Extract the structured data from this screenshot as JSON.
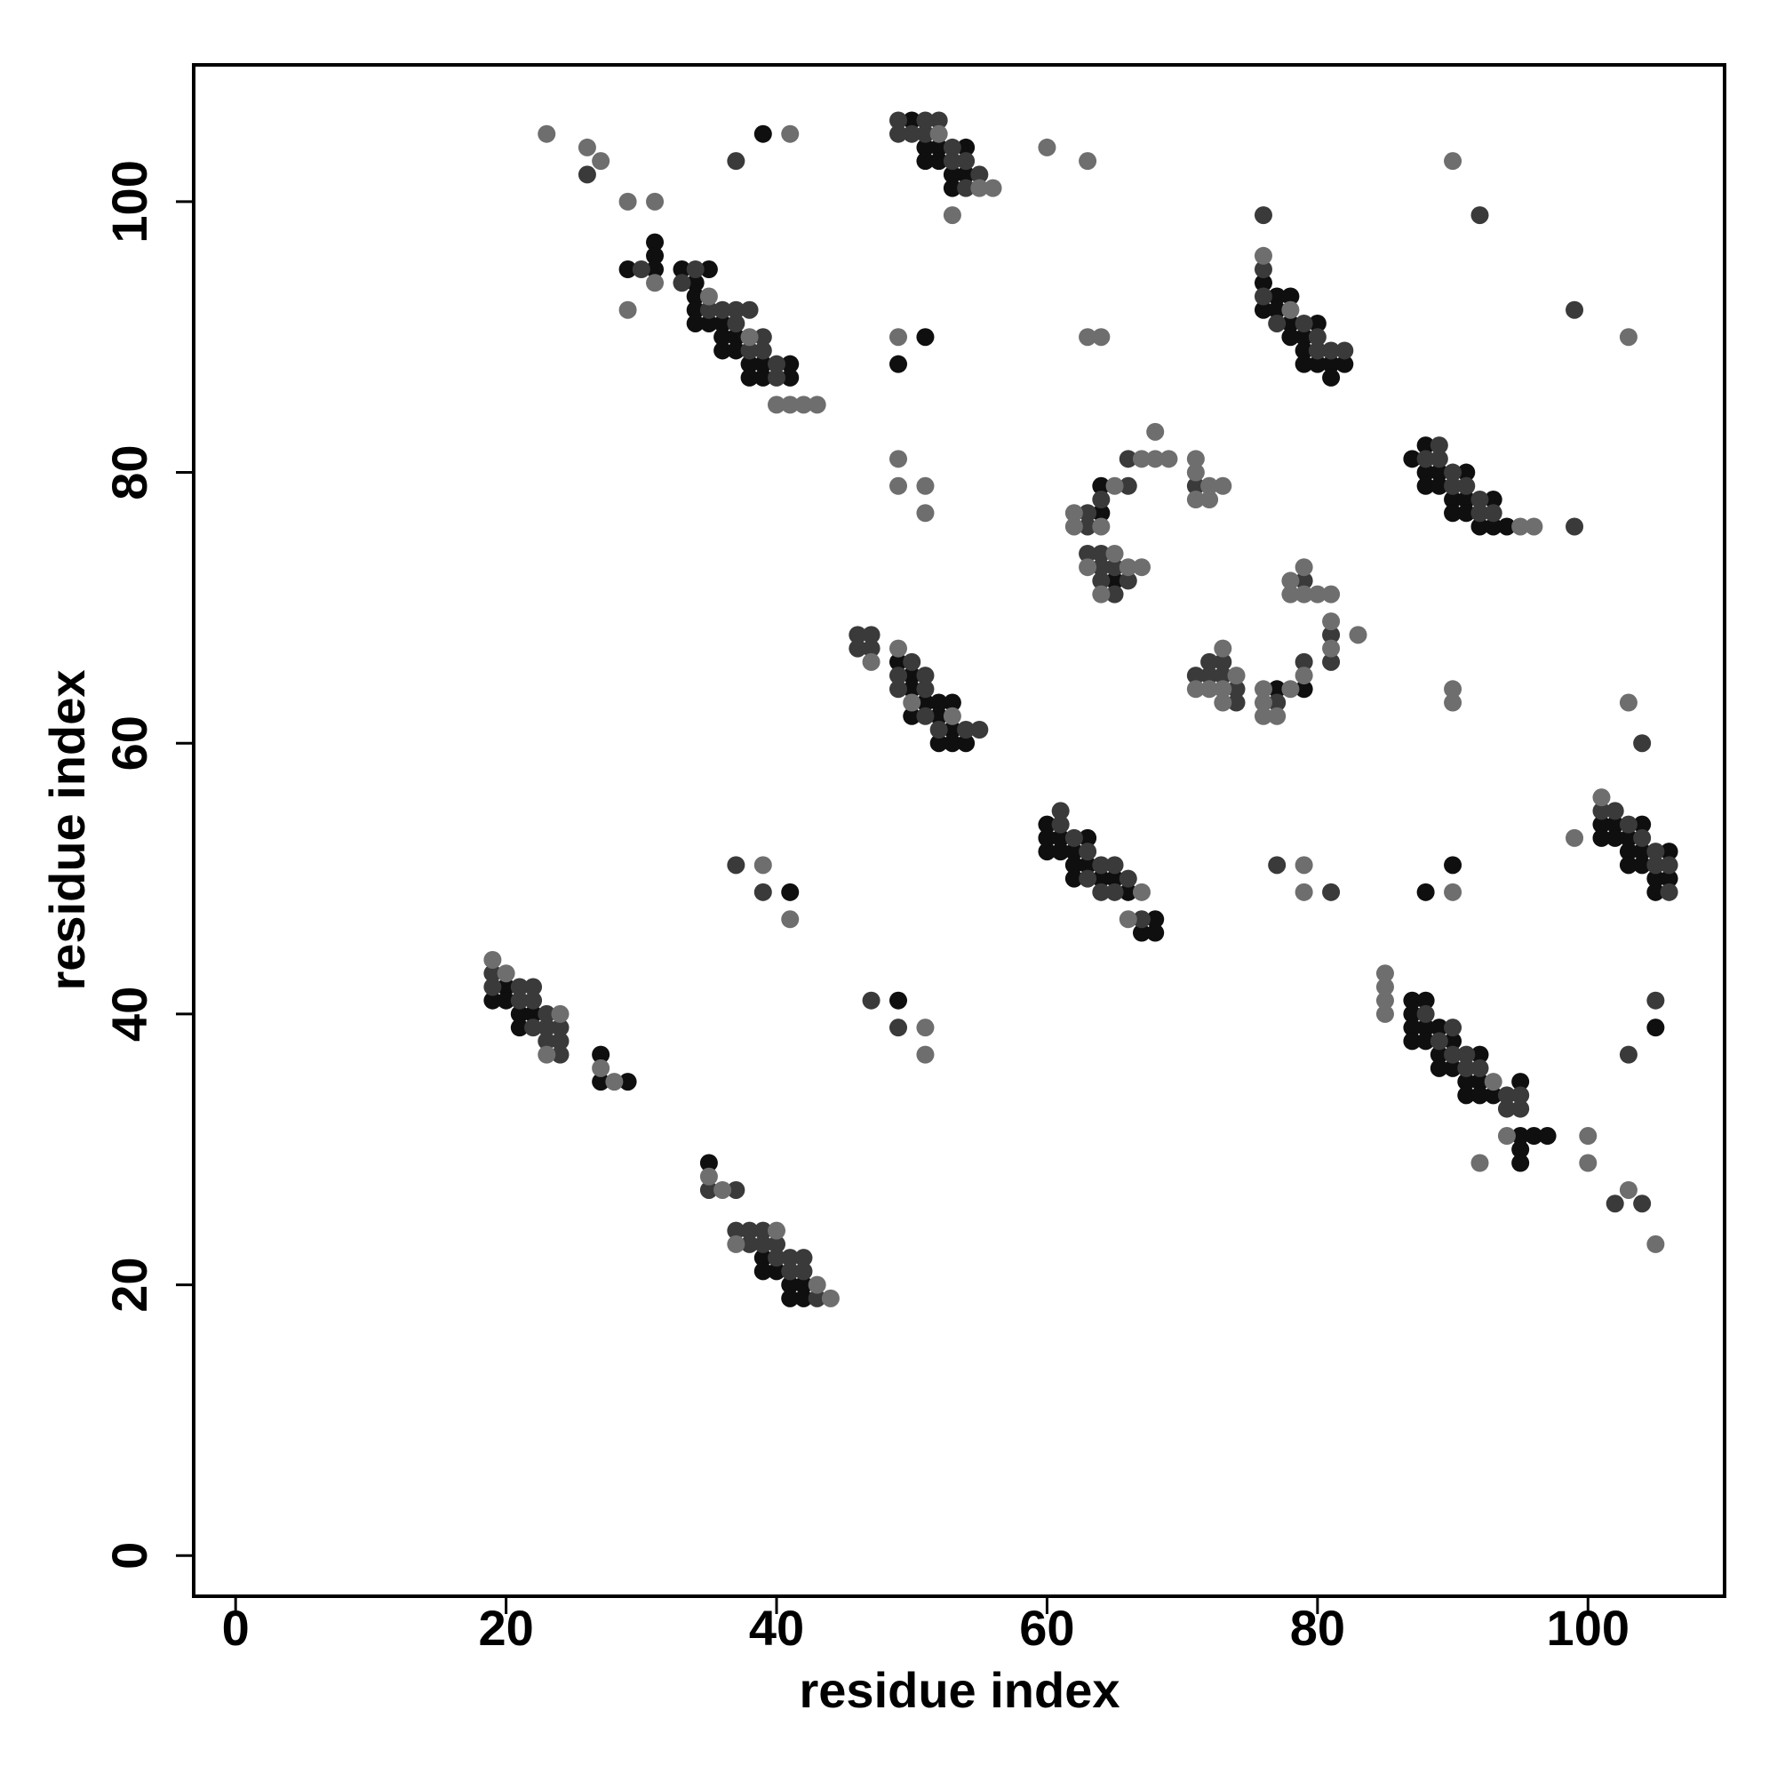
{
  "chart_data": {
    "type": "scatter",
    "x_label": "residue index",
    "y_label": "residue index",
    "xlim": [
      -3.1,
      110.1
    ],
    "ylim": [
      -3.0,
      110.1
    ],
    "xticks": [
      0,
      20,
      40,
      60,
      80,
      100
    ],
    "yticks": [
      0,
      20,
      40,
      60,
      80,
      100
    ],
    "grid": false,
    "series": [
      {
        "color": "#0f0f0f",
        "x": [
          19,
          20,
          20,
          21,
          21,
          22,
          27,
          27,
          29,
          35,
          39,
          39,
          40,
          41,
          41,
          42,
          42,
          29,
          31,
          31,
          31,
          33,
          34,
          34,
          34,
          34,
          35,
          35,
          36,
          36,
          36,
          37,
          37,
          38,
          38,
          39,
          39,
          41,
          41,
          39,
          50,
          51,
          51,
          52,
          52,
          53,
          53,
          54,
          54,
          49,
          50,
          50,
          50,
          51,
          52,
          52,
          52,
          53,
          53,
          53,
          54,
          51,
          49,
          60,
          60,
          60,
          61,
          61,
          62,
          62,
          62,
          63,
          63,
          64,
          65,
          66,
          67,
          68,
          68,
          64,
          64,
          65,
          77,
          79,
          76,
          76,
          77,
          77,
          78,
          78,
          78,
          79,
          79,
          79,
          80,
          80,
          81,
          81,
          82,
          87,
          88,
          88,
          88,
          89,
          89,
          90,
          90,
          91,
          91,
          91,
          92,
          93,
          93,
          94,
          87,
          87,
          87,
          87,
          88,
          88,
          88,
          89,
          89,
          89,
          90,
          90,
          91,
          91,
          92,
          92,
          92,
          93,
          95,
          95,
          95,
          95,
          96,
          97,
          101,
          101,
          102,
          102,
          103,
          103,
          103,
          104,
          104,
          104,
          105,
          105,
          106,
          106,
          90,
          88,
          105,
          49,
          41
        ],
        "values": [
          41,
          42,
          41,
          40,
          39,
          40,
          37,
          35,
          35,
          29,
          22,
          21,
          21,
          20,
          19,
          20,
          19,
          95,
          97,
          96,
          95,
          95,
          94,
          93,
          92,
          91,
          95,
          91,
          91,
          90,
          89,
          90,
          89,
          88,
          87,
          88,
          87,
          88,
          87,
          105,
          106,
          104,
          103,
          104,
          103,
          102,
          101,
          104,
          102,
          66,
          65,
          64,
          62,
          63,
          63,
          62,
          60,
          63,
          61,
          60,
          60,
          90,
          88,
          54,
          53,
          52,
          53,
          52,
          52,
          51,
          50,
          53,
          51,
          50,
          50,
          49,
          46,
          47,
          46,
          79,
          77,
          72,
          64,
          64,
          94,
          92,
          93,
          92,
          93,
          91,
          90,
          90,
          89,
          88,
          91,
          88,
          88,
          87,
          88,
          81,
          82,
          80,
          79,
          80,
          79,
          78,
          77,
          80,
          78,
          77,
          76,
          78,
          76,
          76,
          41,
          40,
          39,
          38,
          41,
          39,
          38,
          39,
          37,
          36,
          38,
          36,
          35,
          34,
          37,
          35,
          34,
          34,
          35,
          31,
          30,
          29,
          31,
          31,
          54,
          53,
          54,
          53,
          53,
          52,
          51,
          54,
          52,
          51,
          50,
          49,
          52,
          50,
          51,
          49,
          39,
          41,
          49
        ]
      },
      {
        "color": "#3a3a3a",
        "x": [
          19,
          19,
          21,
          21,
          22,
          22,
          22,
          23,
          23,
          23,
          24,
          24,
          24,
          35,
          37,
          37,
          38,
          38,
          39,
          39,
          40,
          40,
          41,
          41,
          42,
          42,
          43,
          30,
          33,
          34,
          35,
          36,
          37,
          37,
          38,
          38,
          39,
          39,
          40,
          40,
          26,
          37,
          49,
          49,
          50,
          51,
          51,
          52,
          53,
          53,
          54,
          54,
          55,
          46,
          46,
          47,
          47,
          49,
          49,
          50,
          51,
          51,
          51,
          52,
          54,
          55,
          61,
          61,
          62,
          63,
          63,
          64,
          64,
          65,
          65,
          66,
          67,
          63,
          63,
          63,
          64,
          64,
          64,
          64,
          65,
          65,
          66,
          66,
          66,
          71,
          71,
          72,
          72,
          73,
          73,
          74,
          74,
          77,
          79,
          79,
          81,
          81,
          76,
          76,
          76,
          77,
          79,
          80,
          80,
          81,
          82,
          77,
          81,
          92,
          99,
          88,
          89,
          89,
          90,
          90,
          91,
          92,
          92,
          93,
          99,
          88,
          89,
          90,
          90,
          91,
          91,
          92,
          94,
          94,
          95,
          95,
          102,
          104,
          101,
          102,
          103,
          104,
          105,
          105,
          106,
          106,
          104,
          105,
          103,
          47,
          49,
          37,
          39
        ],
        "values": [
          43,
          42,
          42,
          41,
          42,
          41,
          39,
          40,
          39,
          38,
          39,
          38,
          37,
          27,
          27,
          24,
          24,
          23,
          24,
          23,
          23,
          22,
          22,
          21,
          22,
          21,
          19,
          95,
          94,
          95,
          92,
          92,
          92,
          91,
          92,
          89,
          90,
          89,
          88,
          87,
          102,
          103,
          106,
          105,
          105,
          106,
          105,
          106,
          104,
          103,
          103,
          101,
          102,
          68,
          67,
          68,
          67,
          65,
          64,
          66,
          65,
          64,
          62,
          61,
          61,
          61,
          55,
          54,
          53,
          52,
          50,
          51,
          49,
          51,
          49,
          50,
          47,
          77,
          76,
          74,
          78,
          74,
          73,
          72,
          73,
          71,
          79,
          81,
          72,
          79,
          65,
          66,
          65,
          66,
          65,
          64,
          63,
          63,
          66,
          72,
          68,
          66,
          99,
          95,
          93,
          91,
          91,
          90,
          89,
          89,
          89,
          51,
          49,
          99,
          92,
          81,
          82,
          81,
          80,
          79,
          79,
          78,
          77,
          77,
          76,
          40,
          38,
          39,
          37,
          37,
          36,
          36,
          34,
          33,
          34,
          33,
          26,
          26,
          55,
          55,
          54,
          53,
          52,
          51,
          51,
          49,
          60,
          41,
          37,
          41,
          39,
          51,
          49
        ]
      },
      {
        "color": "#6e6e6e",
        "x": [
          19,
          20,
          23,
          24,
          27,
          28,
          35,
          36,
          37,
          40,
          43,
          44,
          31,
          29,
          35,
          38,
          40,
          41,
          42,
          43,
          23,
          26,
          27,
          29,
          31,
          41,
          52,
          53,
          55,
          56,
          60,
          63,
          47,
          49,
          50,
          53,
          49,
          49,
          49,
          51,
          51,
          63,
          64,
          66,
          67,
          62,
          62,
          63,
          64,
          64,
          65,
          65,
          66,
          67,
          67,
          68,
          68,
          69,
          71,
          71,
          71,
          72,
          72,
          73,
          71,
          72,
          73,
          73,
          73,
          74,
          76,
          76,
          76,
          77,
          78,
          79,
          78,
          78,
          79,
          79,
          80,
          81,
          81,
          81,
          83,
          76,
          78,
          79,
          79,
          90,
          103,
          95,
          96,
          85,
          85,
          85,
          85,
          92,
          93,
          94,
          100,
          100,
          103,
          105,
          99,
          101,
          90,
          90,
          103,
          90,
          51,
          51,
          39,
          41
        ],
        "values": [
          44,
          43,
          37,
          40,
          36,
          35,
          28,
          27,
          23,
          24,
          20,
          19,
          94,
          92,
          93,
          90,
          85,
          85,
          85,
          85,
          105,
          104,
          103,
          100,
          100,
          105,
          105,
          99,
          101,
          101,
          104,
          103,
          66,
          67,
          63,
          62,
          90,
          81,
          79,
          79,
          77,
          90,
          90,
          47,
          49,
          77,
          76,
          73,
          76,
          71,
          79,
          74,
          73,
          81,
          73,
          83,
          81,
          81,
          81,
          80,
          78,
          79,
          78,
          79,
          64,
          64,
          67,
          64,
          63,
          65,
          64,
          63,
          62,
          62,
          64,
          65,
          72,
          71,
          73,
          71,
          71,
          71,
          69,
          67,
          68,
          96,
          92,
          51,
          49,
          103,
          90,
          76,
          76,
          43,
          42,
          41,
          40,
          29,
          35,
          31,
          31,
          29,
          27,
          23,
          53,
          56,
          64,
          63,
          63,
          49,
          39,
          37,
          51,
          47
        ]
      }
    ]
  }
}
